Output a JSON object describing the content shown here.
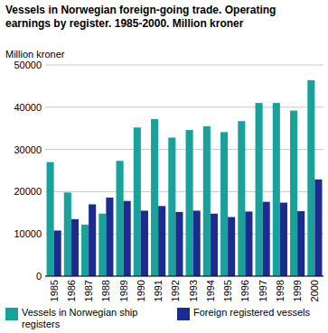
{
  "chart_data": {
    "type": "bar",
    "title": "Vessels in Norwegian foreign-going trade. Operating earnings by register. 1985-2000. Million kroner",
    "y_label": "Million kroner",
    "categories": [
      "1985",
      "1986",
      "1987",
      "1988",
      "1989",
      "1990",
      "1991",
      "1992",
      "1993",
      "1994",
      "1995",
      "1996",
      "1997",
      "1998",
      "1999",
      "2000"
    ],
    "series": [
      {
        "name": "Vessels in Norwegian ship registers",
        "color": "#19a19b",
        "values": [
          27000,
          19800,
          12200,
          14800,
          27300,
          35200,
          37200,
          32800,
          34600,
          35500,
          34100,
          36700,
          41000,
          41000,
          39200,
          46400
        ]
      },
      {
        "name": "Foreign registered vessels",
        "color": "#1b2b8e",
        "values": [
          10800,
          13500,
          17000,
          18600,
          17800,
          15500,
          16600,
          15200,
          15500,
          14800,
          14000,
          15300,
          17600,
          17400,
          15400,
          22900
        ]
      }
    ],
    "ylim": [
      0,
      50000
    ],
    "yticks": [
      0,
      10000,
      20000,
      30000,
      40000,
      50000
    ],
    "grid": true,
    "legend": "bottom"
  }
}
